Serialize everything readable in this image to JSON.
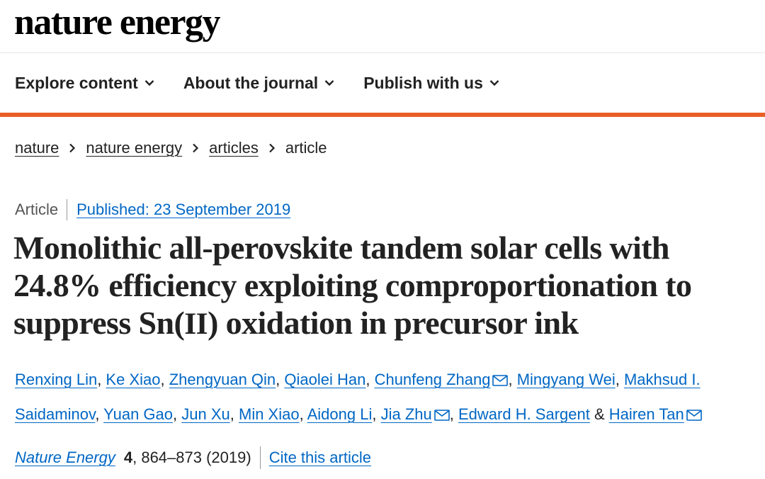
{
  "site": {
    "logo": "nature energy"
  },
  "nav": {
    "items": [
      {
        "label": "Explore content"
      },
      {
        "label": "About the journal"
      },
      {
        "label": "Publish with us"
      }
    ]
  },
  "breadcrumb": [
    "nature",
    "nature energy",
    "articles",
    "article"
  ],
  "article": {
    "type": "Article",
    "published": "Published: 23 September 2019",
    "title_part1": "Monolithic all-perovskite tandem solar cells with 24.8% efficiency exploiting comproportionation to suppress Sn(",
    "title_roman": "II",
    "title_part2": ") oxidation in precursor ink",
    "authors": [
      {
        "name": "Renxing Lin"
      },
      {
        "name": "Ke Xiao"
      },
      {
        "name": "Zhengyuan Qin"
      },
      {
        "name": "Qiaolei Han"
      },
      {
        "name": "Chunfeng Zhang",
        "corresponding": true
      },
      {
        "name": "Mingyang Wei"
      },
      {
        "name": "Makhsud I. Saidaminov"
      },
      {
        "name": "Yuan Gao"
      },
      {
        "name": "Jun Xu"
      },
      {
        "name": "Min Xiao"
      },
      {
        "name": "Aidong Li"
      },
      {
        "name": "Jia Zhu",
        "corresponding": true
      },
      {
        "name": "Edward H. Sargent"
      },
      {
        "name": "Hairen Tan",
        "corresponding": true
      }
    ],
    "citation": {
      "journal": "Nature Energy",
      "volume": "4",
      "pages_year": ", 864–873 (2019)",
      "cite_label": "Cite this article"
    }
  },
  "colors": {
    "accent": "#e95e26",
    "link": "#0067c5",
    "text": "#222222"
  }
}
